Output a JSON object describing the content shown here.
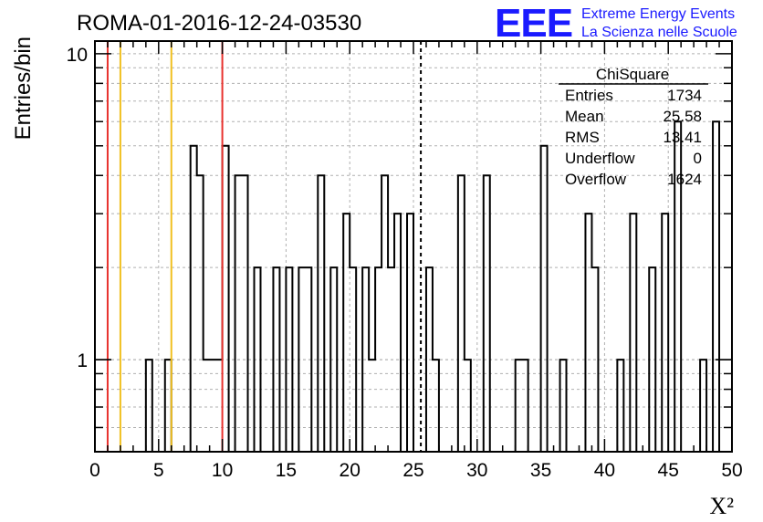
{
  "header": {
    "run_title": "ROMA-01-2016-12-24-03530",
    "logo_text": "EEE",
    "org_line1": "Extreme Energy Events",
    "org_line2": "La Scienza nelle Scuole"
  },
  "colors": {
    "logo": "#1a1aff",
    "red_line": "#e8322e",
    "yellow_line": "#f0c020",
    "histogram": "#000000",
    "grid": "#b0b0b0"
  },
  "stats": {
    "title": "ChiSquare",
    "rows": [
      {
        "label": "Entries",
        "value": "1734"
      },
      {
        "label": "Mean",
        "value": "25.58"
      },
      {
        "label": "RMS",
        "value": "13.41"
      },
      {
        "label": "Underflow",
        "value": "0"
      },
      {
        "label": "Overflow",
        "value": "1624"
      }
    ]
  },
  "chart_data": {
    "type": "bar",
    "histogram": true,
    "xlabel": "X²",
    "ylabel": "Entries/bin",
    "xlim": [
      0,
      50
    ],
    "ylim": [
      0.5,
      11
    ],
    "y_scale": "log",
    "grid": true,
    "bin_width": 0.5,
    "x_ticks": [
      "0",
      "5",
      "10",
      "15",
      "20",
      "25",
      "30",
      "35",
      "40",
      "45",
      "50"
    ],
    "y_ticks": [
      "1",
      "10"
    ],
    "bins": [
      {
        "x": 4,
        "y": 1
      },
      {
        "x": 5.5,
        "y": 1
      },
      {
        "x": 7.5,
        "y": 5
      },
      {
        "x": 8,
        "y": 4
      },
      {
        "x": 8.5,
        "y": 1
      },
      {
        "x": 9,
        "y": 1
      },
      {
        "x": 9.5,
        "y": 1
      },
      {
        "x": 10,
        "y": 5
      },
      {
        "x": 11,
        "y": 4
      },
      {
        "x": 11.5,
        "y": 4
      },
      {
        "x": 12.5,
        "y": 2
      },
      {
        "x": 14,
        "y": 2
      },
      {
        "x": 15,
        "y": 2
      },
      {
        "x": 16,
        "y": 2
      },
      {
        "x": 16.5,
        "y": 2
      },
      {
        "x": 17.5,
        "y": 4
      },
      {
        "x": 18.5,
        "y": 2
      },
      {
        "x": 19.5,
        "y": 3
      },
      {
        "x": 20,
        "y": 2
      },
      {
        "x": 21,
        "y": 2
      },
      {
        "x": 21.5,
        "y": 1
      },
      {
        "x": 22,
        "y": 2
      },
      {
        "x": 22.5,
        "y": 4
      },
      {
        "x": 23,
        "y": 2
      },
      {
        "x": 23.5,
        "y": 3
      },
      {
        "x": 24.5,
        "y": 3
      },
      {
        "x": 26,
        "y": 2
      },
      {
        "x": 26.5,
        "y": 1
      },
      {
        "x": 28.5,
        "y": 4
      },
      {
        "x": 29,
        "y": 1
      },
      {
        "x": 30.5,
        "y": 4
      },
      {
        "x": 33,
        "y": 1
      },
      {
        "x": 33.5,
        "y": 1
      },
      {
        "x": 35,
        "y": 5
      },
      {
        "x": 36.5,
        "y": 1
      },
      {
        "x": 38.5,
        "y": 3
      },
      {
        "x": 39,
        "y": 2
      },
      {
        "x": 41,
        "y": 1
      },
      {
        "x": 42,
        "y": 3
      },
      {
        "x": 43.5,
        "y": 2
      },
      {
        "x": 44.5,
        "y": 3
      },
      {
        "x": 45.5,
        "y": 6
      },
      {
        "x": 47.5,
        "y": 1
      },
      {
        "x": 48.5,
        "y": 6
      }
    ],
    "reference_lines": [
      {
        "x": 1,
        "color": "red",
        "style": "solid"
      },
      {
        "x": 2,
        "color": "yellow",
        "style": "solid"
      },
      {
        "x": 6,
        "color": "yellow",
        "style": "solid"
      },
      {
        "x": 10,
        "color": "red",
        "style": "solid"
      },
      {
        "x": 25.58,
        "color": "black",
        "style": "dashed"
      }
    ]
  }
}
